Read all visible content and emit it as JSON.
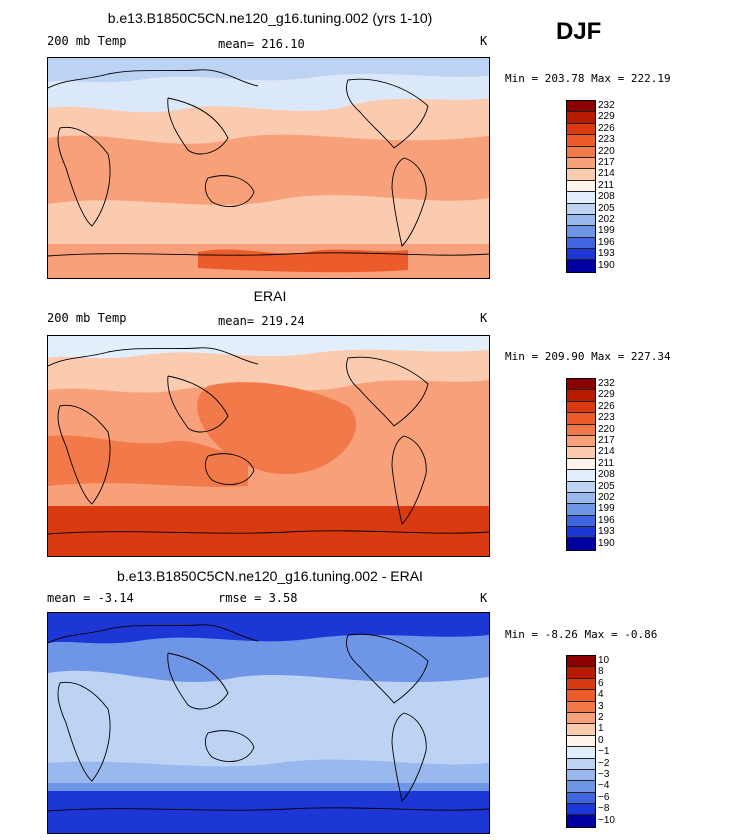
{
  "season": "DJF",
  "panels": [
    {
      "id": "model",
      "title": "b.e13.B1850C5CN.ne120_g16.tuning.002 (yrs 1-10)",
      "left": "200 mb Temp",
      "center": "mean= 216.10",
      "right": "K",
      "minmax": "Min = 203.78 Max = 222.19",
      "colorbar": {
        "labels": [
          "232",
          "229",
          "226",
          "223",
          "220",
          "217",
          "214",
          "211",
          "208",
          "205",
          "202",
          "199",
          "196",
          "193",
          "190"
        ],
        "colors": [
          "#8b0000",
          "#b81a00",
          "#d93a10",
          "#ec5b2a",
          "#f27a4a",
          "#f7a07a",
          "#fbcbb0",
          "#fff3ea",
          "#e3eefb",
          "#bcd3f3",
          "#98b8ee",
          "#6f95e7",
          "#3f66df",
          "#1d36d6",
          "#0000a0"
        ]
      },
      "fill_colors": {
        "cold": "#bcd3f3",
        "cool": "#dbe8fa",
        "neutral": "#fbcbb0",
        "warm": "#f7a07a",
        "hot": "#ec5b2a"
      }
    },
    {
      "id": "obs",
      "title": "ERAI",
      "left": "200 mb Temp",
      "center": "mean= 219.24",
      "right": "K",
      "minmax": "Min = 209.90 Max = 227.34",
      "colorbar": {
        "labels": [
          "232",
          "229",
          "226",
          "223",
          "220",
          "217",
          "214",
          "211",
          "208",
          "205",
          "202",
          "199",
          "196",
          "193",
          "190"
        ],
        "colors": [
          "#8b0000",
          "#b81a00",
          "#d93a10",
          "#ec5b2a",
          "#f27a4a",
          "#f7a07a",
          "#fbcbb0",
          "#fff3ea",
          "#e3eefb",
          "#bcd3f3",
          "#98b8ee",
          "#6f95e7",
          "#3f66df",
          "#1d36d6",
          "#0000a0"
        ]
      },
      "fill_colors": {
        "cold": "#e3eefb",
        "cool": "#fbcbb0",
        "neutral": "#f7a07a",
        "warm": "#f27a4a",
        "hot": "#d93a10"
      }
    },
    {
      "id": "diff",
      "title": "b.e13.B1850C5CN.ne120_g16.tuning.002 - ERAI",
      "left": "mean =   -3.14",
      "center": "rmse =    3.58",
      "right": "K",
      "minmax": "Min =  -8.26 Max =  -0.86",
      "colorbar": {
        "labels": [
          "10",
          "8",
          "6",
          "4",
          "3",
          "2",
          "1",
          "0",
          "−1",
          "−2",
          "−3",
          "−4",
          "−6",
          "−8",
          "−10"
        ],
        "colors": [
          "#8b0000",
          "#b81a00",
          "#d93a10",
          "#ec5b2a",
          "#f27a4a",
          "#f7a07a",
          "#fbcbb0",
          "#fff3ea",
          "#e3eefb",
          "#bcd3f3",
          "#98b8ee",
          "#6f95e7",
          "#3f66df",
          "#1d36d6",
          "#0000a0"
        ]
      },
      "fill_colors": {
        "cold": "#1d36d6",
        "cool": "#3f66df",
        "neutral": "#6f95e7",
        "warm": "#98b8ee",
        "hot": "#bcd3f3"
      }
    }
  ]
}
